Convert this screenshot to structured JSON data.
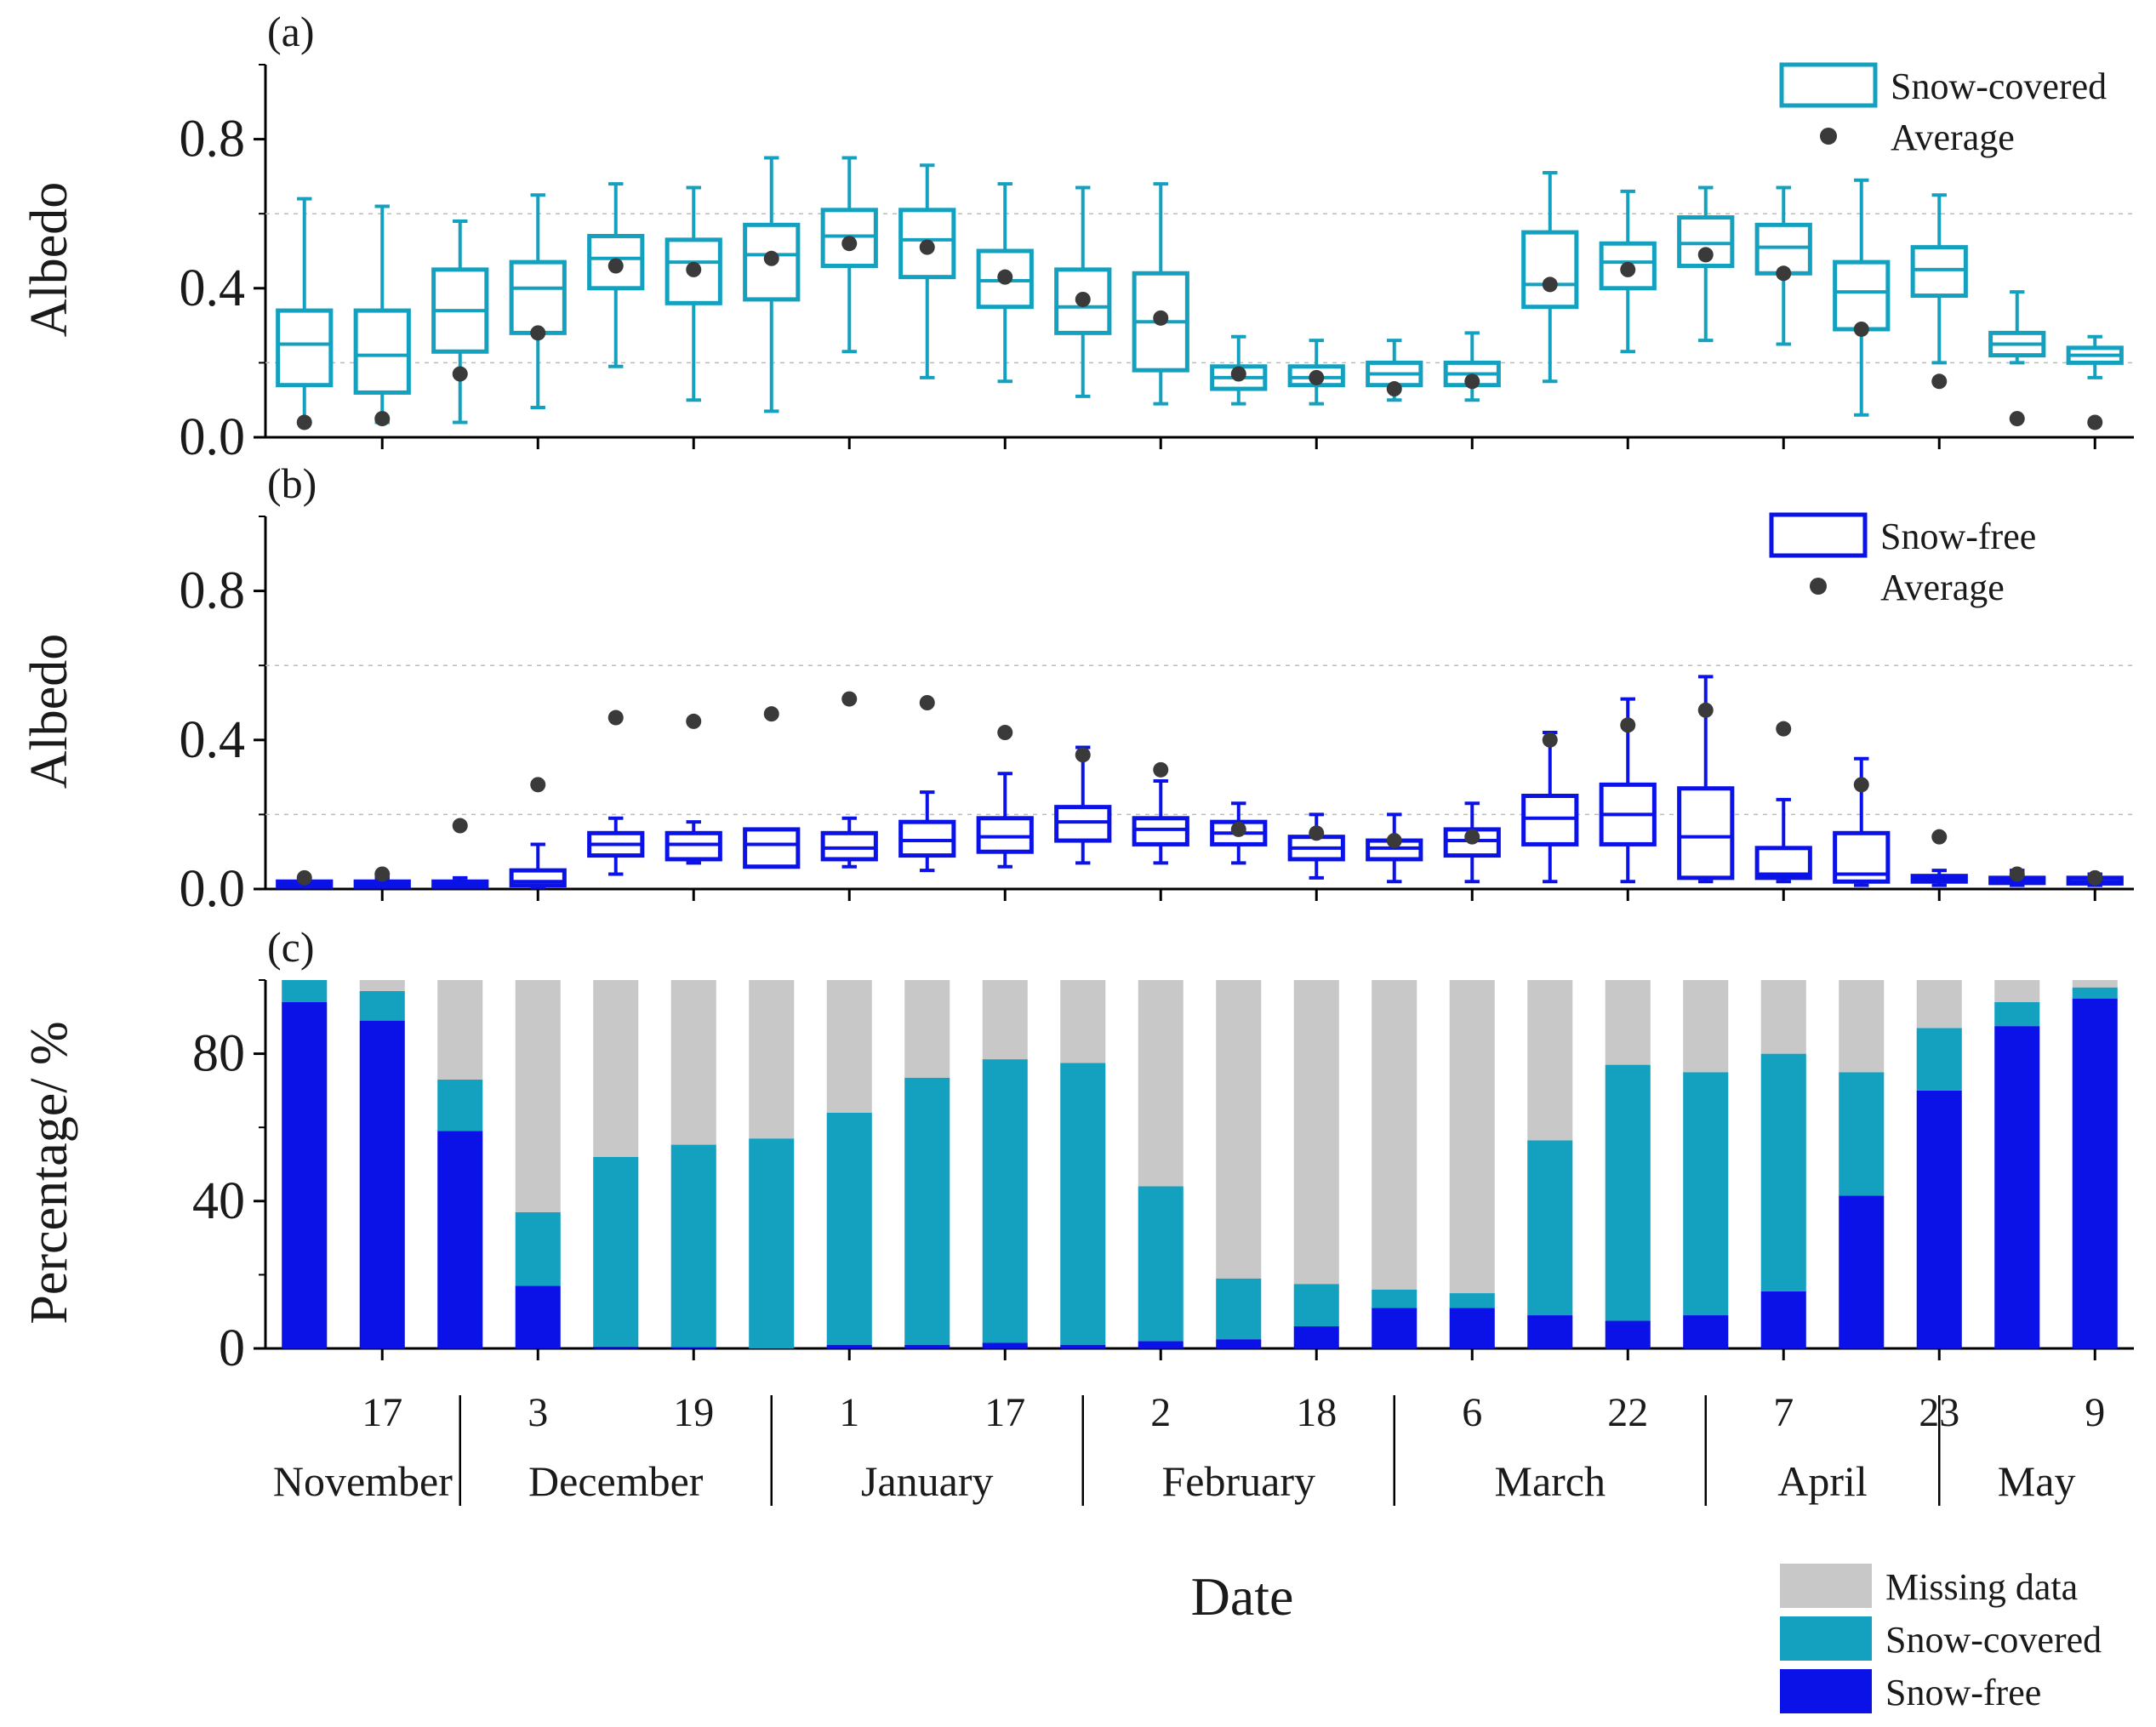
{
  "colors": {
    "snow_covered": "#14A0BF",
    "snow_free": "#0A12E8",
    "missing": "#C8C8C8",
    "average": "#3A3A3A",
    "grid": "#BBBBBB",
    "axis": "#000000"
  },
  "chart_data": [
    {
      "id": "a",
      "panel_label": "(a)",
      "type": "box",
      "ylabel": "Albedo",
      "ylim": [
        0,
        1.0
      ],
      "yticks": [
        "0.0",
        "0.4",
        "0.8"
      ],
      "grid_lines": [
        0.2,
        0.6
      ],
      "legend": {
        "box_label": "Snow-covered",
        "point_label": "Average",
        "placement": "top-right"
      },
      "boxes": [
        {
          "whislo": 0.04,
          "q1": 0.14,
          "med": 0.25,
          "q3": 0.34,
          "whishi": 0.64,
          "mean": 0.04
        },
        {
          "whislo": 0.04,
          "q1": 0.12,
          "med": 0.22,
          "q3": 0.34,
          "whishi": 0.62,
          "mean": 0.05
        },
        {
          "whislo": 0.04,
          "q1": 0.23,
          "med": 0.34,
          "q3": 0.45,
          "whishi": 0.58,
          "mean": 0.17
        },
        {
          "whislo": 0.08,
          "q1": 0.28,
          "med": 0.4,
          "q3": 0.47,
          "whishi": 0.65,
          "mean": 0.28
        },
        {
          "whislo": 0.19,
          "q1": 0.4,
          "med": 0.48,
          "q3": 0.54,
          "whishi": 0.68,
          "mean": 0.46
        },
        {
          "whislo": 0.1,
          "q1": 0.36,
          "med": 0.47,
          "q3": 0.53,
          "whishi": 0.67,
          "mean": 0.45
        },
        {
          "whislo": 0.07,
          "q1": 0.37,
          "med": 0.49,
          "q3": 0.57,
          "whishi": 0.75,
          "mean": 0.48
        },
        {
          "whislo": 0.23,
          "q1": 0.46,
          "med": 0.54,
          "q3": 0.61,
          "whishi": 0.75,
          "mean": 0.52
        },
        {
          "whislo": 0.16,
          "q1": 0.43,
          "med": 0.53,
          "q3": 0.61,
          "whishi": 0.73,
          "mean": 0.51
        },
        {
          "whislo": 0.15,
          "q1": 0.35,
          "med": 0.42,
          "q3": 0.5,
          "whishi": 0.68,
          "mean": 0.43
        },
        {
          "whislo": 0.11,
          "q1": 0.28,
          "med": 0.35,
          "q3": 0.45,
          "whishi": 0.67,
          "mean": 0.37
        },
        {
          "whislo": 0.09,
          "q1": 0.18,
          "med": 0.31,
          "q3": 0.44,
          "whishi": 0.68,
          "mean": 0.32
        },
        {
          "whislo": 0.09,
          "q1": 0.13,
          "med": 0.16,
          "q3": 0.19,
          "whishi": 0.27,
          "mean": 0.17
        },
        {
          "whislo": 0.09,
          "q1": 0.14,
          "med": 0.16,
          "q3": 0.19,
          "whishi": 0.26,
          "mean": 0.16
        },
        {
          "whislo": 0.1,
          "q1": 0.14,
          "med": 0.17,
          "q3": 0.2,
          "whishi": 0.26,
          "mean": 0.13
        },
        {
          "whislo": 0.1,
          "q1": 0.14,
          "med": 0.17,
          "q3": 0.2,
          "whishi": 0.28,
          "mean": 0.15
        },
        {
          "whislo": 0.15,
          "q1": 0.35,
          "med": 0.41,
          "q3": 0.55,
          "whishi": 0.71,
          "mean": 0.41
        },
        {
          "whislo": 0.23,
          "q1": 0.4,
          "med": 0.47,
          "q3": 0.52,
          "whishi": 0.66,
          "mean": 0.45
        },
        {
          "whislo": 0.26,
          "q1": 0.46,
          "med": 0.52,
          "q3": 0.59,
          "whishi": 0.67,
          "mean": 0.49
        },
        {
          "whislo": 0.25,
          "q1": 0.44,
          "med": 0.51,
          "q3": 0.57,
          "whishi": 0.67,
          "mean": 0.44
        },
        {
          "whislo": 0.06,
          "q1": 0.29,
          "med": 0.39,
          "q3": 0.47,
          "whishi": 0.69,
          "mean": 0.29
        },
        {
          "whislo": 0.2,
          "q1": 0.38,
          "med": 0.45,
          "q3": 0.51,
          "whishi": 0.65,
          "mean": 0.15
        },
        {
          "whislo": 0.2,
          "q1": 0.22,
          "med": 0.25,
          "q3": 0.28,
          "whishi": 0.39,
          "mean": 0.05
        },
        {
          "whislo": 0.16,
          "q1": 0.2,
          "med": 0.22,
          "q3": 0.24,
          "whishi": 0.27,
          "mean": 0.04
        }
      ]
    },
    {
      "id": "b",
      "panel_label": "(b)",
      "type": "box",
      "ylabel": "Albedo",
      "ylim": [
        0,
        1.0
      ],
      "yticks": [
        "0.0",
        "0.4",
        "0.8"
      ],
      "grid_lines": [
        0.2,
        0.6
      ],
      "legend": {
        "box_label": "Snow-free",
        "point_label": "Average",
        "placement": "top-right"
      },
      "boxes": [
        {
          "whislo": 0.01,
          "q1": 0.01,
          "med": 0.015,
          "q3": 0.02,
          "whishi": 0.03,
          "mean": 0.03
        },
        {
          "whislo": 0.01,
          "q1": 0.01,
          "med": 0.015,
          "q3": 0.02,
          "whishi": 0.03,
          "mean": 0.04
        },
        {
          "whislo": 0.01,
          "q1": 0.01,
          "med": 0.015,
          "q3": 0.02,
          "whishi": 0.03,
          "mean": 0.17
        },
        {
          "whislo": 0.005,
          "q1": 0.01,
          "med": 0.02,
          "q3": 0.05,
          "whishi": 0.12,
          "mean": 0.28
        },
        {
          "whislo": 0.04,
          "q1": 0.09,
          "med": 0.12,
          "q3": 0.15,
          "whishi": 0.19,
          "mean": 0.46
        },
        {
          "whislo": 0.07,
          "q1": 0.08,
          "med": 0.12,
          "q3": 0.15,
          "whishi": 0.18,
          "mean": 0.45
        },
        {
          "whislo": 0.06,
          "q1": 0.06,
          "med": 0.12,
          "q3": 0.16,
          "whishi": 0.16,
          "mean": 0.47
        },
        {
          "whislo": 0.06,
          "q1": 0.08,
          "med": 0.11,
          "q3": 0.15,
          "whishi": 0.19,
          "mean": 0.51
        },
        {
          "whislo": 0.05,
          "q1": 0.09,
          "med": 0.13,
          "q3": 0.18,
          "whishi": 0.26,
          "mean": 0.5
        },
        {
          "whislo": 0.06,
          "q1": 0.1,
          "med": 0.14,
          "q3": 0.19,
          "whishi": 0.31,
          "mean": 0.42
        },
        {
          "whislo": 0.07,
          "q1": 0.13,
          "med": 0.18,
          "q3": 0.22,
          "whishi": 0.38,
          "mean": 0.36
        },
        {
          "whislo": 0.07,
          "q1": 0.12,
          "med": 0.16,
          "q3": 0.19,
          "whishi": 0.29,
          "mean": 0.32
        },
        {
          "whislo": 0.07,
          "q1": 0.12,
          "med": 0.15,
          "q3": 0.18,
          "whishi": 0.23,
          "mean": 0.16
        },
        {
          "whislo": 0.03,
          "q1": 0.08,
          "med": 0.11,
          "q3": 0.14,
          "whishi": 0.2,
          "mean": 0.15
        },
        {
          "whislo": 0.02,
          "q1": 0.08,
          "med": 0.11,
          "q3": 0.13,
          "whishi": 0.2,
          "mean": 0.13
        },
        {
          "whislo": 0.02,
          "q1": 0.09,
          "med": 0.13,
          "q3": 0.16,
          "whishi": 0.23,
          "mean": 0.14
        },
        {
          "whislo": 0.02,
          "q1": 0.12,
          "med": 0.19,
          "q3": 0.25,
          "whishi": 0.42,
          "mean": 0.4
        },
        {
          "whislo": 0.02,
          "q1": 0.12,
          "med": 0.2,
          "q3": 0.28,
          "whishi": 0.51,
          "mean": 0.44
        },
        {
          "whislo": 0.02,
          "q1": 0.03,
          "med": 0.14,
          "q3": 0.27,
          "whishi": 0.57,
          "mean": 0.48
        },
        {
          "whislo": 0.02,
          "q1": 0.03,
          "med": 0.04,
          "q3": 0.11,
          "whishi": 0.24,
          "mean": 0.43
        },
        {
          "whislo": 0.01,
          "q1": 0.02,
          "med": 0.04,
          "q3": 0.15,
          "whishi": 0.35,
          "mean": 0.28
        },
        {
          "whislo": 0.01,
          "q1": 0.02,
          "med": 0.025,
          "q3": 0.035,
          "whishi": 0.05,
          "mean": 0.14
        },
        {
          "whislo": 0.01,
          "q1": 0.02,
          "med": 0.025,
          "q3": 0.03,
          "whishi": 0.05,
          "mean": 0.04
        },
        {
          "whislo": 0.01,
          "q1": 0.015,
          "med": 0.02,
          "q3": 0.03,
          "whishi": 0.04,
          "mean": 0.03
        }
      ]
    },
    {
      "id": "c",
      "panel_label": "(c)",
      "type": "stacked-bar",
      "ylabel": "Percentage/ %",
      "ylim": [
        0,
        100
      ],
      "yticks": [
        "0",
        "40",
        "80"
      ],
      "series": [
        {
          "name": "Snow-free",
          "color_key": "snow_free",
          "values": [
            94,
            89,
            59,
            17,
            0.5,
            0.3,
            0,
            1,
            1,
            1.5,
            1,
            2,
            2.5,
            6,
            11,
            11,
            9,
            7.5,
            9,
            15.5,
            41.5,
            70,
            87.5,
            95
          ]
        },
        {
          "name": "Snow-covered",
          "color_key": "snow_covered",
          "values": [
            6,
            8,
            14,
            20,
            51.5,
            55,
            57,
            63,
            72.5,
            77,
            76.5,
            42,
            16.5,
            11.5,
            5,
            4,
            47.5,
            69.5,
            66,
            64.5,
            33.5,
            17,
            6.5,
            3
          ]
        },
        {
          "name": "Missing data",
          "color_key": "missing",
          "values": [
            0,
            3,
            27,
            63,
            48,
            44.7,
            43,
            36,
            26.5,
            21.5,
            22.5,
            56,
            81,
            82.5,
            84,
            85,
            43.5,
            23,
            25,
            20,
            25,
            13,
            6,
            2
          ]
        }
      ],
      "legend": {
        "entries": [
          "Missing data",
          "Snow-covered",
          "Snow-free"
        ],
        "placement": "bottom-right outside"
      },
      "xlabel": "Date",
      "xticks": [
        {
          "label": "17",
          "index": 1
        },
        {
          "label": "3",
          "index": 3
        },
        {
          "label": "19",
          "index": 5
        },
        {
          "label": "1",
          "index": 7
        },
        {
          "label": "17",
          "index": 9
        },
        {
          "label": "2",
          "index": 11
        },
        {
          "label": "18",
          "index": 13
        },
        {
          "label": "6",
          "index": 15
        },
        {
          "label": "22",
          "index": 17
        },
        {
          "label": "7",
          "index": 19
        },
        {
          "label": "23",
          "index": 21
        },
        {
          "label": "9",
          "index": 23
        }
      ],
      "months": [
        {
          "label": "November",
          "start": 0,
          "end": 2.5
        },
        {
          "label": "December",
          "start": 2.5,
          "end": 6.5
        },
        {
          "label": "January",
          "start": 6.5,
          "end": 10.5
        },
        {
          "label": "February",
          "start": 10.5,
          "end": 14.5
        },
        {
          "label": "March",
          "start": 14.5,
          "end": 18.5
        },
        {
          "label": "April",
          "start": 18.5,
          "end": 21.5
        },
        {
          "label": "May",
          "start": 21.5,
          "end": 24
        }
      ]
    }
  ]
}
